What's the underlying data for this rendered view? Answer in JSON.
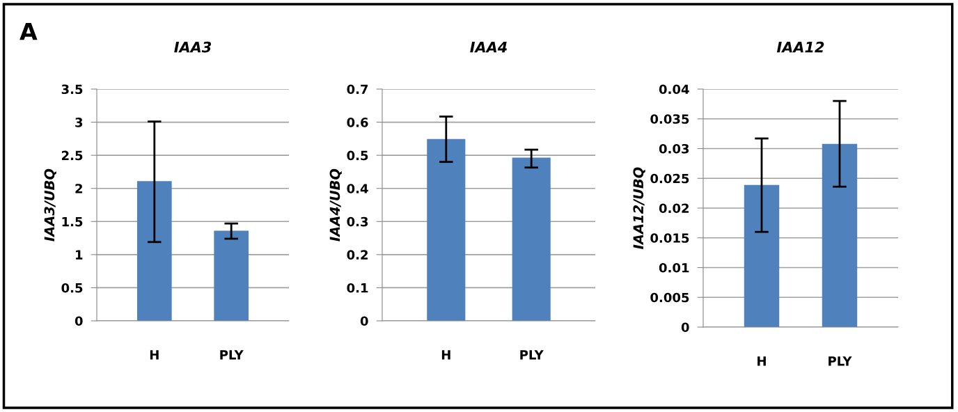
{
  "chart_data": [
    {
      "type": "bar",
      "title": "IAA3",
      "ylabel": "IAA3/UBQ",
      "categories": [
        "H",
        "PLY"
      ],
      "values": [
        2.11,
        1.36
      ],
      "errors": [
        [
          1.19,
          3.01
        ],
        [
          1.24,
          1.47
        ]
      ],
      "color": "#4f81bd",
      "ylim": [
        0,
        3.5
      ],
      "yticks": [
        0,
        0.5,
        1,
        1.5,
        2,
        2.5,
        3,
        3.5
      ],
      "grid": "y",
      "annotations": [
        "A"
      ]
    },
    {
      "type": "bar",
      "title": "IAA4",
      "ylabel": "IAA4/UBQ",
      "categories": [
        "H",
        "PLY"
      ],
      "values": [
        0.549,
        0.493
      ],
      "errors": [
        [
          0.48,
          0.617
        ],
        [
          0.463,
          0.517
        ]
      ],
      "color": "#4f81bd",
      "ylim": [
        0,
        0.7
      ],
      "yticks": [
        0,
        0.1,
        0.2,
        0.3,
        0.4,
        0.5,
        0.6,
        0.7
      ],
      "grid": "y"
    },
    {
      "type": "bar",
      "title": "IAA12",
      "ylabel": "IAA12/UBQ",
      "categories": [
        "H",
        "PLY"
      ],
      "values": [
        0.0239,
        0.0308
      ],
      "errors": [
        [
          0.016,
          0.0317
        ],
        [
          0.0236,
          0.038
        ]
      ],
      "color": "#4f81bd",
      "ylim": [
        0,
        0.04
      ],
      "yticks": [
        0,
        0.005,
        0.01,
        0.015,
        0.02,
        0.025,
        0.03,
        0.035,
        0.04
      ],
      "grid": "y"
    }
  ]
}
